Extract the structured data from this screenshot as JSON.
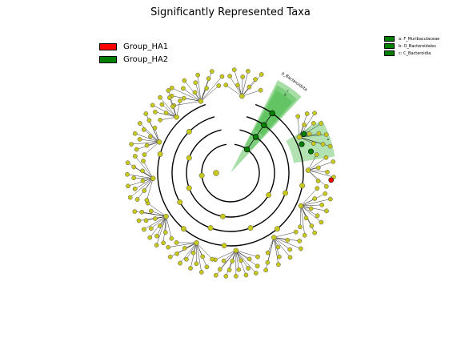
{
  "title": "Significantly Represented Taxa",
  "legend": {
    "groups": [
      {
        "label": "Group_HA1",
        "color": "#ff0000"
      },
      {
        "label": "Group_HA2",
        "color": "#008000"
      }
    ]
  },
  "clade_legend": [
    {
      "label": "a: F_Muribaculaceae",
      "color": "#008000"
    },
    {
      "label": "b: O_Bacteroidales",
      "color": "#008000"
    },
    {
      "label": "c: C_Bacteroidia",
      "color": "#008000"
    }
  ],
  "sectors": [
    {
      "label": "p_Bacteroidota"
    },
    {
      "label": "c"
    },
    {
      "label": "b"
    },
    {
      "label": "a"
    }
  ],
  "colors": {
    "node_default": "#c8c81a",
    "node_ha1": "#ff0000",
    "node_ha2": "#008000",
    "highlight": "#00a000"
  }
}
